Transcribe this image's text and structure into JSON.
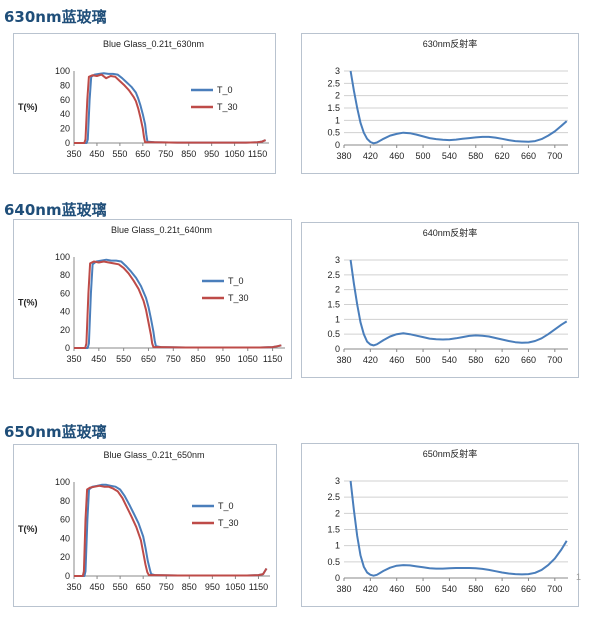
{
  "sections": [
    {
      "title": "630nm蓝玻璃"
    },
    {
      "title": "640nm蓝玻璃"
    },
    {
      "title": "650nm蓝玻璃"
    }
  ],
  "page_marker": "1",
  "colors": {
    "t0": "#4a7ebb",
    "t30": "#be4b48",
    "reflect": "#4a7ebb",
    "grid": "#d0d0d0"
  },
  "chart_data": [
    {
      "type": "line",
      "title": "Blue Glass_0.21t_630nm",
      "ylabel": "T(%)",
      "xlim": [
        350,
        1200
      ],
      "ylim": [
        0,
        100
      ],
      "xticks": [
        "350",
        "450",
        "550",
        "650",
        "750",
        "850",
        "950",
        "1050",
        "1150"
      ],
      "yticks": [
        "0",
        "20",
        "40",
        "60",
        "80",
        "100"
      ],
      "legend_position": "right",
      "series": [
        {
          "name": "T_0",
          "color": "#4a7ebb",
          "x": [
            350,
            405,
            410,
            418,
            425,
            440,
            460,
            480,
            500,
            520,
            540,
            560,
            580,
            600,
            620,
            630,
            640,
            650,
            660,
            665,
            670,
            700,
            800,
            900,
            1000,
            1100,
            1150,
            1170,
            1185
          ],
          "y": [
            0,
            0,
            5,
            60,
            92,
            95,
            96,
            97,
            96,
            96,
            95,
            90,
            84,
            78,
            70,
            62,
            52,
            40,
            26,
            12,
            2,
            1,
            0.5,
            0.5,
            0.5,
            0.5,
            1,
            2,
            4
          ]
        },
        {
          "name": "T_30",
          "color": "#be4b48",
          "x": [
            350,
            395,
            400,
            408,
            415,
            430,
            450,
            470,
            490,
            510,
            530,
            550,
            570,
            590,
            610,
            620,
            630,
            640,
            650,
            655,
            660,
            690,
            800,
            900,
            1000,
            1100,
            1150,
            1170,
            1185
          ],
          "y": [
            0,
            0,
            5,
            60,
            92,
            94,
            93,
            95,
            90,
            93,
            92,
            86,
            80,
            73,
            64,
            58,
            48,
            35,
            20,
            8,
            1,
            1,
            0.5,
            0.5,
            0.5,
            0.5,
            1,
            2,
            4
          ]
        }
      ]
    },
    {
      "type": "line",
      "title": "630nm反射率",
      "xlim": [
        380,
        720
      ],
      "ylim": [
        0,
        3
      ],
      "xticks": [
        "380",
        "420",
        "460",
        "500",
        "540",
        "580",
        "620",
        "660",
        "700"
      ],
      "yticks": [
        "0",
        "0.5",
        "1",
        "1.5",
        "2",
        "2.5",
        "3"
      ],
      "series": [
        {
          "name": "",
          "color": "#4a7ebb",
          "x": [
            390,
            395,
            400,
            405,
            410,
            415,
            420,
            425,
            430,
            440,
            450,
            460,
            470,
            480,
            490,
            500,
            510,
            520,
            530,
            540,
            550,
            560,
            570,
            580,
            590,
            600,
            610,
            620,
            630,
            640,
            650,
            660,
            670,
            680,
            690,
            700,
            710,
            718
          ],
          "y": [
            3.0,
            2.2,
            1.5,
            0.9,
            0.5,
            0.25,
            0.12,
            0.07,
            0.1,
            0.25,
            0.38,
            0.45,
            0.5,
            0.48,
            0.42,
            0.35,
            0.28,
            0.24,
            0.21,
            0.2,
            0.22,
            0.25,
            0.28,
            0.31,
            0.33,
            0.33,
            0.3,
            0.25,
            0.2,
            0.16,
            0.14,
            0.13,
            0.16,
            0.24,
            0.38,
            0.55,
            0.78,
            0.97
          ]
        }
      ]
    },
    {
      "type": "line",
      "title": "Blue Glass_0.21t_640nm",
      "ylabel": "T(%)",
      "xlim": [
        350,
        1200
      ],
      "ylim": [
        0,
        100
      ],
      "xticks": [
        "350",
        "450",
        "550",
        "650",
        "750",
        "850",
        "950",
        "1050",
        "1150"
      ],
      "yticks": [
        "0",
        "20",
        "40",
        "60",
        "80",
        "100"
      ],
      "legend_position": "right",
      "series": [
        {
          "name": "T_0",
          "color": "#4a7ebb",
          "x": [
            350,
            405,
            410,
            418,
            425,
            440,
            460,
            480,
            500,
            520,
            540,
            560,
            580,
            600,
            620,
            640,
            650,
            660,
            670,
            675,
            680,
            700,
            800,
            900,
            1000,
            1100,
            1150,
            1170,
            1185
          ],
          "y": [
            0,
            0,
            5,
            60,
            92,
            95,
            96,
            97,
            96,
            96,
            95,
            90,
            84,
            77,
            68,
            55,
            45,
            32,
            18,
            8,
            2,
            1,
            0.5,
            0.5,
            0.5,
            0.5,
            1,
            2,
            3
          ]
        },
        {
          "name": "T_30",
          "color": "#be4b48",
          "x": [
            350,
            395,
            400,
            408,
            415,
            430,
            450,
            470,
            490,
            510,
            530,
            550,
            570,
            590,
            610,
            630,
            640,
            650,
            660,
            665,
            670,
            700,
            800,
            900,
            1000,
            1100,
            1150,
            1170,
            1185
          ],
          "y": [
            0,
            0,
            5,
            60,
            93,
            95,
            94,
            95,
            94,
            93,
            92,
            88,
            82,
            74,
            65,
            52,
            42,
            28,
            14,
            5,
            1,
            1,
            0.5,
            0.5,
            0.5,
            0.5,
            1,
            2,
            3
          ]
        }
      ]
    },
    {
      "type": "line",
      "title": "640nm反射率",
      "xlim": [
        380,
        720
      ],
      "ylim": [
        0,
        3
      ],
      "xticks": [
        "380",
        "420",
        "460",
        "500",
        "540",
        "580",
        "620",
        "660",
        "700"
      ],
      "yticks": [
        "0",
        "0.5",
        "1",
        "1.5",
        "2",
        "2.5",
        "3"
      ],
      "series": [
        {
          "name": "",
          "color": "#4a7ebb",
          "x": [
            390,
            395,
            400,
            405,
            410,
            415,
            420,
            425,
            430,
            440,
            450,
            460,
            470,
            480,
            490,
            500,
            510,
            520,
            530,
            540,
            550,
            560,
            570,
            580,
            590,
            600,
            610,
            620,
            630,
            640,
            650,
            660,
            670,
            680,
            690,
            700,
            710,
            718
          ],
          "y": [
            3.0,
            2.2,
            1.5,
            0.9,
            0.5,
            0.25,
            0.15,
            0.12,
            0.16,
            0.3,
            0.42,
            0.5,
            0.53,
            0.5,
            0.45,
            0.4,
            0.35,
            0.33,
            0.32,
            0.33,
            0.36,
            0.4,
            0.44,
            0.46,
            0.45,
            0.42,
            0.37,
            0.32,
            0.27,
            0.23,
            0.21,
            0.22,
            0.27,
            0.36,
            0.5,
            0.66,
            0.82,
            0.93
          ]
        }
      ]
    },
    {
      "type": "line",
      "title": "Blue Glass_0.21t_650nm",
      "ylabel": "T(%)",
      "xlim": [
        350,
        1200
      ],
      "ylim": [
        0,
        100
      ],
      "xticks": [
        "350",
        "450",
        "550",
        "650",
        "750",
        "850",
        "950",
        "1050",
        "1150"
      ],
      "yticks": [
        "0",
        "20",
        "40",
        "60",
        "80",
        "100"
      ],
      "legend_position": "right",
      "series": [
        {
          "name": "T_0",
          "color": "#4a7ebb",
          "x": [
            350,
            395,
            400,
            408,
            415,
            430,
            450,
            470,
            490,
            510,
            530,
            550,
            570,
            590,
            610,
            630,
            650,
            660,
            670,
            680,
            685,
            700,
            800,
            900,
            1000,
            1100,
            1150,
            1170,
            1185
          ],
          "y": [
            0,
            0,
            5,
            60,
            92,
            95,
            96,
            97,
            97,
            96,
            95,
            92,
            85,
            76,
            66,
            56,
            42,
            30,
            16,
            6,
            2,
            1,
            0.5,
            0.5,
            0.5,
            0.5,
            1,
            2,
            8
          ]
        },
        {
          "name": "T_30",
          "color": "#be4b48",
          "x": [
            350,
            388,
            393,
            400,
            407,
            420,
            440,
            460,
            480,
            500,
            520,
            540,
            560,
            580,
            600,
            620,
            640,
            650,
            660,
            668,
            675,
            700,
            800,
            900,
            1000,
            1100,
            1150,
            1170,
            1185
          ],
          "y": [
            0,
            0,
            5,
            60,
            92,
            94,
            95,
            96,
            95,
            95,
            93,
            90,
            83,
            73,
            63,
            52,
            38,
            25,
            12,
            4,
            1,
            1,
            0.5,
            0.5,
            0.5,
            0.5,
            1,
            2,
            8
          ]
        }
      ]
    },
    {
      "type": "line",
      "title": "650nm反射率",
      "xlim": [
        380,
        720
      ],
      "ylim": [
        0,
        3
      ],
      "xticks": [
        "380",
        "420",
        "460",
        "500",
        "540",
        "580",
        "620",
        "660",
        "700"
      ],
      "yticks": [
        "0",
        "0.5",
        "1",
        "1.5",
        "2",
        "2.5",
        "3"
      ],
      "series": [
        {
          "name": "",
          "color": "#4a7ebb",
          "x": [
            390,
            395,
            400,
            405,
            410,
            415,
            420,
            425,
            430,
            440,
            450,
            460,
            470,
            480,
            490,
            500,
            510,
            520,
            530,
            540,
            550,
            560,
            570,
            580,
            590,
            600,
            610,
            620,
            630,
            640,
            650,
            660,
            670,
            680,
            690,
            700,
            710,
            718
          ],
          "y": [
            3.0,
            2.1,
            1.3,
            0.7,
            0.35,
            0.17,
            0.1,
            0.07,
            0.1,
            0.22,
            0.32,
            0.38,
            0.4,
            0.39,
            0.36,
            0.33,
            0.3,
            0.29,
            0.29,
            0.3,
            0.31,
            0.31,
            0.31,
            0.3,
            0.28,
            0.25,
            0.21,
            0.17,
            0.14,
            0.12,
            0.11,
            0.12,
            0.16,
            0.25,
            0.4,
            0.6,
            0.88,
            1.15
          ]
        }
      ]
    }
  ]
}
